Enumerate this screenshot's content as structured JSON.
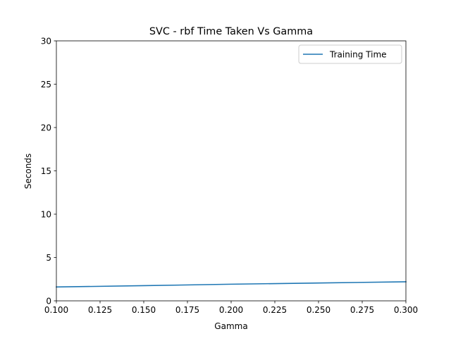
{
  "chart_data": {
    "type": "line",
    "title": "SVC - rbf Time Taken Vs Gamma",
    "xlabel": "Gamma",
    "ylabel": "Seconds",
    "xlim": [
      0.1,
      0.3
    ],
    "ylim": [
      0,
      30
    ],
    "x_ticks": [
      "0.100",
      "0.125",
      "0.150",
      "0.175",
      "0.200",
      "0.225",
      "0.250",
      "0.275",
      "0.300"
    ],
    "y_ticks": [
      "0",
      "5",
      "10",
      "15",
      "20",
      "25",
      "30"
    ],
    "grid": false,
    "legend_position": "top-right",
    "series": [
      {
        "name": "Training Time",
        "color": "#1f77b4",
        "x": [
          0.1,
          0.15,
          0.2,
          0.25,
          0.3
        ],
        "y": [
          1.6,
          1.75,
          1.92,
          2.06,
          2.2
        ]
      }
    ]
  }
}
